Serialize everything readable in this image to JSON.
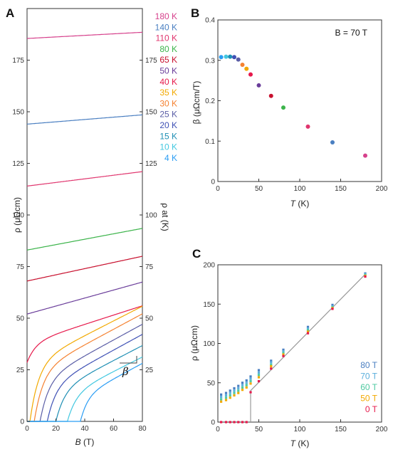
{
  "chart_data": [
    {
      "panel": "A",
      "type": "line",
      "xlabel_sym": "B",
      "xlabel_unit": " (T)",
      "ylabel": "ρ (μΩcm)",
      "y2label": "ρ at (K)",
      "xlim": [
        0,
        80
      ],
      "ylim": [
        0,
        200
      ],
      "xticks": [
        0,
        20,
        40,
        60,
        80
      ],
      "yticks": [
        0,
        25,
        50,
        75,
        100,
        125,
        150,
        175
      ],
      "y2ticks": [
        25,
        50,
        75,
        100,
        125,
        150,
        175
      ],
      "annotation": "β",
      "series": [
        {
          "name": "180 K",
          "color": "#d6418c",
          "onset": 0,
          "rho0": 185.5,
          "slope": 3.0,
          "round": 5
        },
        {
          "name": "140 K",
          "color": "#4a7fc1",
          "onset": 0,
          "rho0": 144.0,
          "slope": 4.5,
          "round": 5
        },
        {
          "name": "110 K",
          "color": "#e0356e",
          "onset": 0,
          "rho0": 114.0,
          "slope": 7.0,
          "round": 5
        },
        {
          "name": "80 K",
          "color": "#3cb44b",
          "onset": 0,
          "rho0": 83.0,
          "slope": 10.5,
          "round": 5
        },
        {
          "name": "65 K",
          "color": "#c8102e",
          "onset": 0,
          "rho0": 68.0,
          "slope": 12.0,
          "round": 5
        },
        {
          "name": "50 K",
          "color": "#6a3d9a",
          "onset": 0,
          "rho0": 52.0,
          "slope": 15.5,
          "round": 5
        },
        {
          "name": "40 K",
          "color": "#e6194b",
          "onset": 0,
          "rho0": 38.0,
          "slope": 18.0,
          "round": 6
        },
        {
          "name": "35 K",
          "color": "#f2a900",
          "onset": 2,
          "rho0": 28.0,
          "slope": 28.5,
          "round": 6
        },
        {
          "name": "30 K",
          "color": "#f58231",
          "onset": 5,
          "rho0": 24.0,
          "slope": 30.0,
          "round": 6
        },
        {
          "name": "25 K",
          "color": "#5b5ea6",
          "onset": 9,
          "rho0": 20.0,
          "slope": 30.5,
          "round": 6
        },
        {
          "name": "20 K",
          "color": "#3f51b5",
          "onset": 14,
          "rho0": 17.0,
          "slope": 30.5,
          "round": 6
        },
        {
          "name": "15 K",
          "color": "#1f8fb4",
          "onset": 20,
          "rho0": 15.0,
          "slope": 29.0,
          "round": 6
        },
        {
          "name": "10 K",
          "color": "#42c8e0",
          "onset": 28,
          "rho0": 13.0,
          "slope": 28.0,
          "round": 6
        },
        {
          "name": "4 K",
          "color": "#2a9df4",
          "onset": 37,
          "rho0": 12.0,
          "slope": 30.0,
          "round": 5
        }
      ]
    },
    {
      "panel": "B",
      "type": "scatter",
      "annotation": "B = 70 T",
      "xlabel_sym": "T",
      "xlabel_unit": " (K)",
      "ylabel": "β (μΩcm/T)",
      "xlim": [
        0,
        200
      ],
      "ylim": [
        0,
        0.4
      ],
      "xticks": [
        0,
        50,
        100,
        150,
        200
      ],
      "yticks": [
        0,
        0.1,
        0.2,
        0.3,
        0.4
      ],
      "points": [
        {
          "x": 4,
          "y": 0.308,
          "color": "#2a9df4"
        },
        {
          "x": 10,
          "y": 0.309,
          "color": "#42c8e0"
        },
        {
          "x": 15,
          "y": 0.309,
          "color": "#1f8fb4"
        },
        {
          "x": 20,
          "y": 0.308,
          "color": "#3f51b5"
        },
        {
          "x": 25,
          "y": 0.302,
          "color": "#5b5ea6"
        },
        {
          "x": 30,
          "y": 0.289,
          "color": "#f58231"
        },
        {
          "x": 35,
          "y": 0.279,
          "color": "#f2a900"
        },
        {
          "x": 40,
          "y": 0.265,
          "color": "#e6194b"
        },
        {
          "x": 50,
          "y": 0.238,
          "color": "#6a3d9a"
        },
        {
          "x": 65,
          "y": 0.212,
          "color": "#c8102e"
        },
        {
          "x": 80,
          "y": 0.183,
          "color": "#3cb44b"
        },
        {
          "x": 110,
          "y": 0.136,
          "color": "#e0356e"
        },
        {
          "x": 140,
          "y": 0.097,
          "color": "#4a7fc1"
        },
        {
          "x": 180,
          "y": 0.064,
          "color": "#d6418c"
        }
      ]
    },
    {
      "panel": "C",
      "type": "scatter",
      "xlabel_sym": "T",
      "xlabel_unit": " (K)",
      "ylabel": "ρ (μΩcm)",
      "xlim": [
        0,
        200
      ],
      "ylim": [
        0,
        200
      ],
      "xticks": [
        0,
        50,
        100,
        150,
        200
      ],
      "yticks": [
        0,
        50,
        100,
        150,
        200
      ],
      "fit_line": [
        [
          40,
          0
        ],
        [
          40,
          40
        ],
        [
          180,
          188
        ]
      ],
      "series": [
        {
          "name": "80 T",
          "color": "#4a7fc1",
          "points": [
            [
              4,
              35
            ],
            [
              10,
              37
            ],
            [
              15,
              40
            ],
            [
              20,
              43
            ],
            [
              25,
              46
            ],
            [
              30,
              50
            ],
            [
              35,
              53
            ],
            [
              40,
              58
            ],
            [
              50,
              66
            ],
            [
              65,
              78
            ],
            [
              80,
              92
            ],
            [
              110,
              121
            ],
            [
              140,
              149
            ],
            [
              180,
              189
            ]
          ]
        },
        {
          "name": "70 T",
          "color": "#5aaedc",
          "points": [
            [
              4,
              32
            ],
            [
              10,
              34
            ],
            [
              15,
              37
            ],
            [
              20,
              40
            ],
            [
              25,
              43
            ],
            [
              30,
              47
            ],
            [
              35,
              50
            ],
            [
              40,
              55
            ],
            [
              50,
              63
            ],
            [
              65,
              76
            ],
            [
              80,
              90
            ],
            [
              110,
              119
            ],
            [
              140,
              147
            ],
            [
              180,
              188
            ]
          ]
        },
        {
          "name": "60 T",
          "color": "#4ec9a0",
          "points": [
            [
              4,
              29
            ],
            [
              10,
              31
            ],
            [
              15,
              34
            ],
            [
              20,
              37
            ],
            [
              25,
              40
            ],
            [
              30,
              44
            ],
            [
              35,
              47
            ],
            [
              40,
              52
            ],
            [
              50,
              60
            ],
            [
              65,
              73
            ],
            [
              80,
              88
            ],
            [
              110,
              117
            ],
            [
              140,
              146
            ],
            [
              180,
              187
            ]
          ]
        },
        {
          "name": "50 T",
          "color": "#f2a900",
          "points": [
            [
              4,
              26
            ],
            [
              10,
              28
            ],
            [
              15,
              31
            ],
            [
              20,
              34
            ],
            [
              25,
              37
            ],
            [
              30,
              41
            ],
            [
              35,
              44
            ],
            [
              40,
              49
            ],
            [
              50,
              57
            ],
            [
              65,
              71
            ],
            [
              80,
              86
            ],
            [
              110,
              115
            ],
            [
              140,
              145
            ],
            [
              180,
              186
            ]
          ]
        },
        {
          "name": "0 T",
          "color": "#e6194b",
          "points": [
            [
              4,
              0
            ],
            [
              10,
              0
            ],
            [
              15,
              0
            ],
            [
              20,
              0
            ],
            [
              25,
              0
            ],
            [
              30,
              0
            ],
            [
              35,
              0
            ],
            [
              40,
              38
            ],
            [
              50,
              52
            ],
            [
              65,
              68
            ],
            [
              80,
              84
            ],
            [
              110,
              113
            ],
            [
              140,
              144
            ],
            [
              180,
              185
            ]
          ]
        }
      ]
    }
  ]
}
